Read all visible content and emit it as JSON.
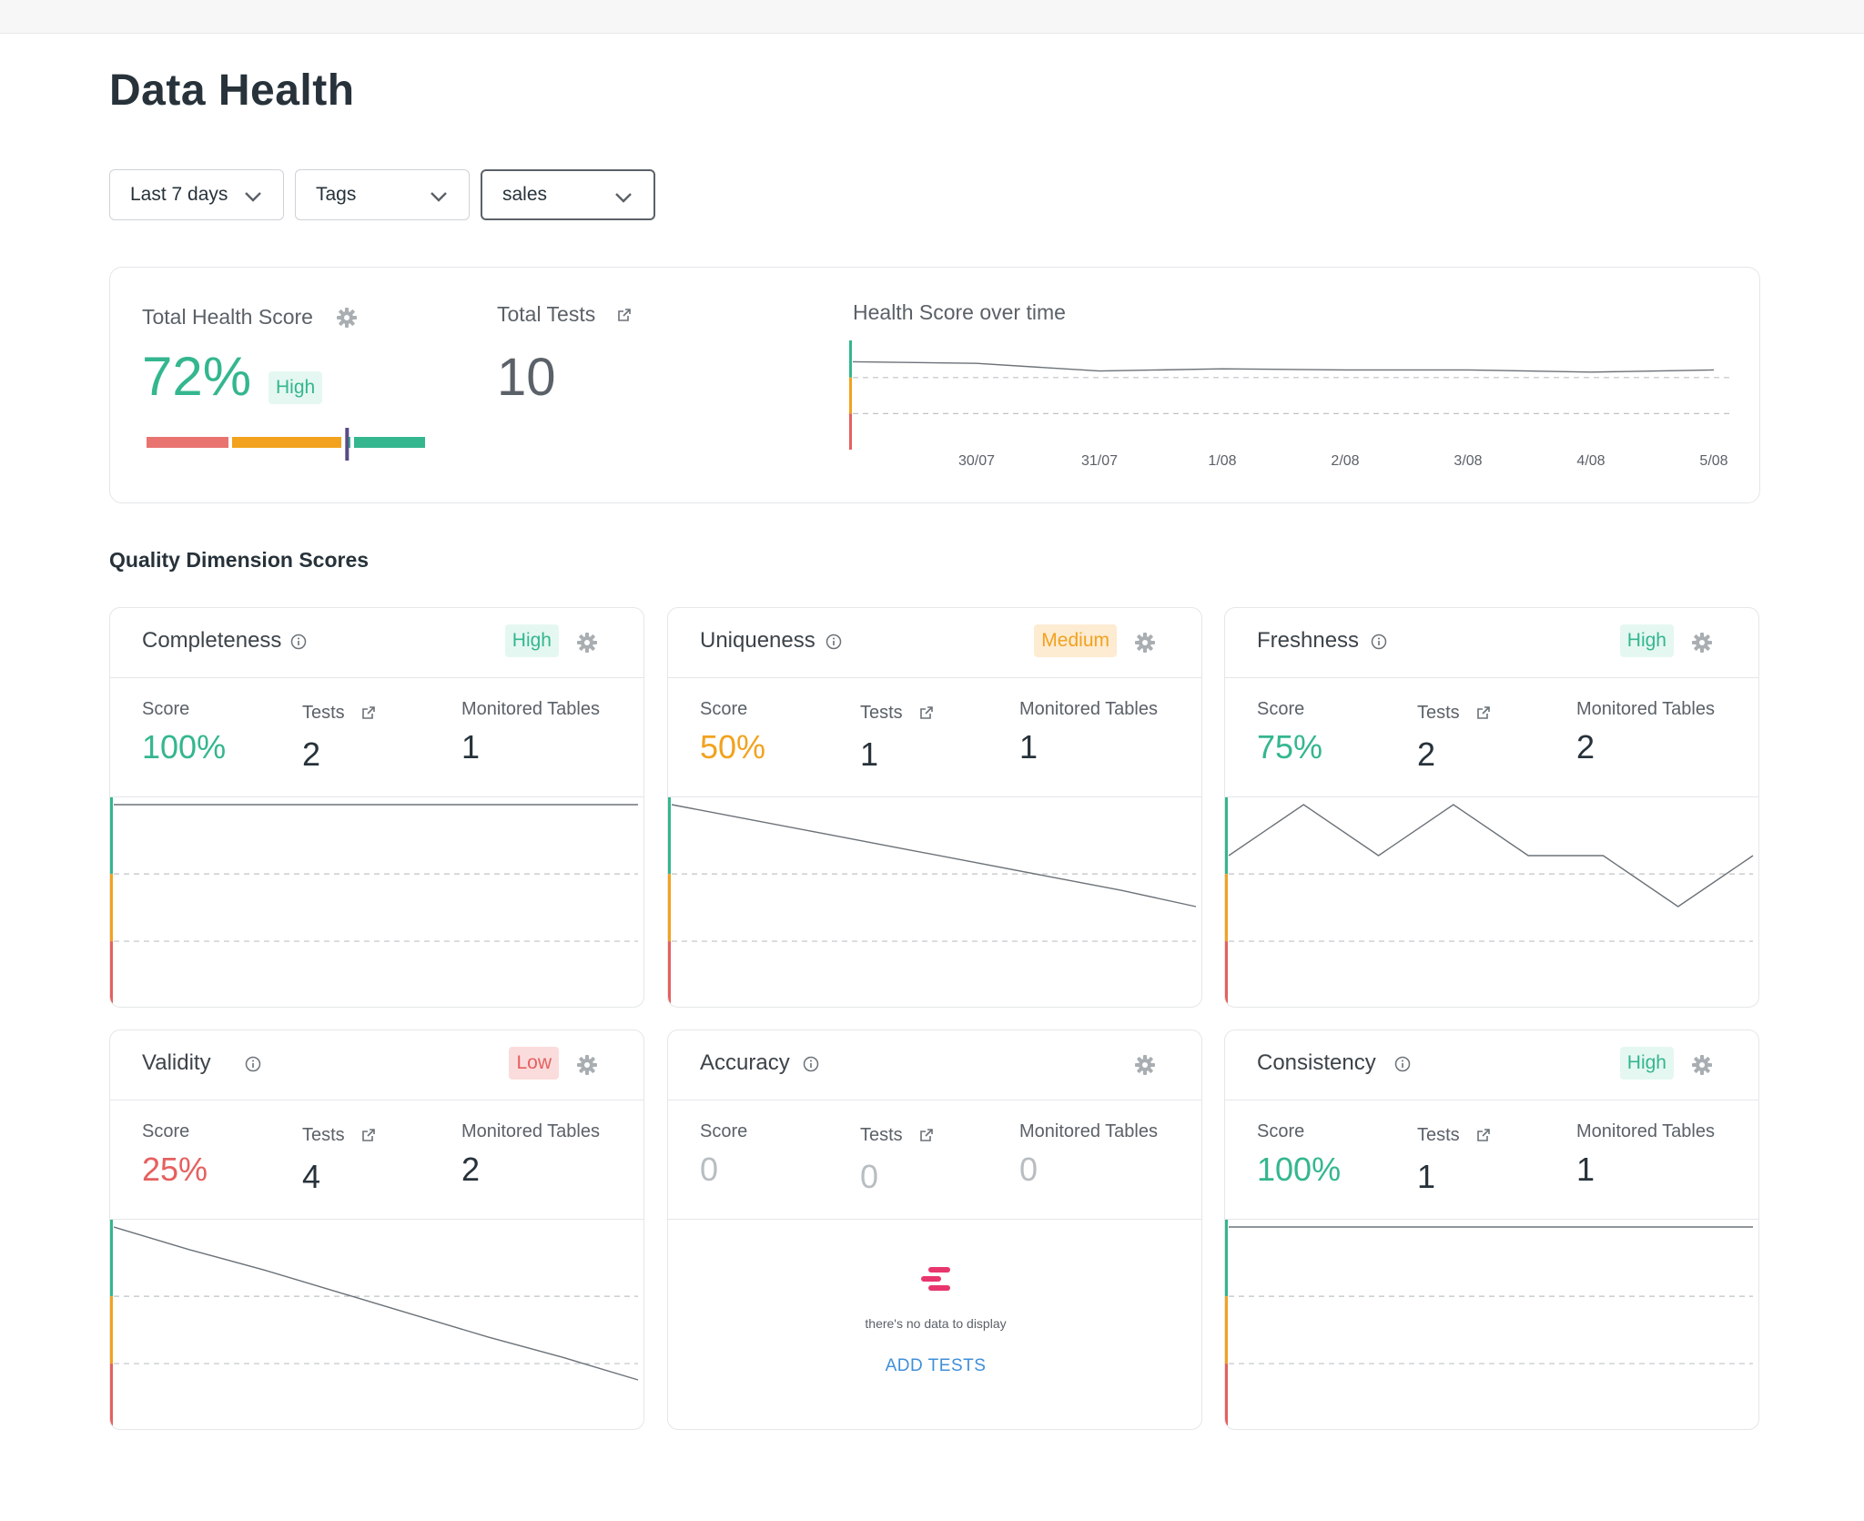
{
  "page": {
    "title": "Data Health"
  },
  "filters": {
    "period": "Last 7 days",
    "tags": "Tags",
    "search": "sales"
  },
  "summary": {
    "health_label": "Total Health Score",
    "health_value": "72%",
    "health_level": "High",
    "health_fraction": 0.72,
    "tests_label": "Total Tests",
    "tests_value": "10",
    "chart_title": "Health Score over time"
  },
  "chart_data": [
    {
      "type": "line",
      "title": "Health Score over time",
      "x": [
        "30/07",
        "31/07",
        "1/08",
        "2/08",
        "3/08",
        "4/08",
        "5/08"
      ],
      "series": [
        {
          "values": [
            79,
            72,
            74,
            73,
            73,
            71,
            73
          ]
        }
      ],
      "ylim": [
        0,
        100
      ],
      "thresholds": [
        33,
        66
      ]
    },
    {
      "type": "line",
      "dimension": "Completeness",
      "series": [
        {
          "values": [
            100,
            100,
            100,
            100,
            100,
            100,
            100,
            100
          ]
        }
      ],
      "ylim": [
        0,
        100
      ],
      "thresholds": [
        33,
        66
      ]
    },
    {
      "type": "line",
      "dimension": "Uniqueness",
      "series": [
        {
          "values": [
            100,
            93,
            86,
            79,
            72,
            65,
            58,
            50
          ]
        }
      ],
      "ylim": [
        0,
        100
      ],
      "thresholds": [
        33,
        66
      ]
    },
    {
      "type": "line",
      "dimension": "Freshness",
      "series": [
        {
          "values": [
            75,
            100,
            75,
            100,
            75,
            75,
            50,
            75
          ]
        }
      ],
      "ylim": [
        0,
        100
      ],
      "thresholds": [
        33,
        66
      ]
    },
    {
      "type": "line",
      "dimension": "Validity",
      "series": [
        {
          "values": [
            100,
            89,
            79,
            68,
            57,
            46,
            36,
            25
          ]
        }
      ],
      "ylim": [
        0,
        100
      ],
      "thresholds": [
        33,
        66
      ]
    },
    {
      "type": "line",
      "dimension": "Consistency",
      "series": [
        {
          "values": [
            100,
            100,
            100,
            100,
            100,
            100,
            100,
            100
          ]
        }
      ],
      "ylim": [
        0,
        100
      ],
      "thresholds": [
        33,
        66
      ]
    }
  ],
  "section": {
    "title": "Quality Dimension Scores"
  },
  "stat_labels": {
    "score": "Score",
    "tests": "Tests",
    "tables": "Monitored Tables"
  },
  "dimensions": [
    {
      "name": "Completeness",
      "level": "High",
      "score": "100%",
      "tests": "2",
      "tables": "1"
    },
    {
      "name": "Uniqueness",
      "level": "Medium",
      "score": "50%",
      "tests": "1",
      "tables": "1"
    },
    {
      "name": "Freshness",
      "level": "High",
      "score": "75%",
      "tests": "2",
      "tables": "2"
    },
    {
      "name": "Validity",
      "level": "Low",
      "score": "25%",
      "tests": "4",
      "tables": "2"
    },
    {
      "name": "Accuracy",
      "level": "",
      "score": "0",
      "tests": "0",
      "tables": "0",
      "empty_text": "there's no data to display",
      "add_tests": "ADD TESTS"
    },
    {
      "name": "Consistency",
      "level": "High",
      "score": "100%",
      "tests": "1",
      "tables": "1"
    }
  ],
  "colors": {
    "high": "#34b68f",
    "medium": "#f2a21e",
    "low": "#e5605f",
    "muted": "#b8bdc1",
    "link": "#3f8fd8",
    "brand": "#e8356d",
    "text": "#27323a"
  }
}
